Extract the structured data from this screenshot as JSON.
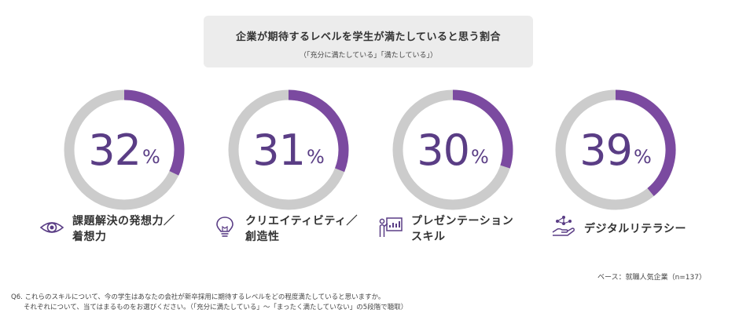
{
  "title": "企業が期待するレベルを学生が満たしていると思う割合",
  "subtitle": "（「充分に満たしている」「満たしている」）",
  "colors": {
    "accent": "#7b4aa0",
    "track": "#cccccc",
    "value_text": "#5a3d85"
  },
  "chart_data": {
    "type": "gauge",
    "title": "企業が期待するレベルを学生が満たしていると思う割合",
    "subtitle": "（「充分に満たしている」「満たしている」）",
    "unit": "%",
    "max": 100,
    "items": [
      {
        "value": 32,
        "value_label": "32",
        "label_lines": [
          "課題解決の発想力／",
          "着想力"
        ],
        "icon": "eye-icon"
      },
      {
        "value": 31,
        "value_label": "31",
        "label_lines": [
          "クリエイティビティ／",
          "創造性"
        ],
        "icon": "lightbulb-icon"
      },
      {
        "value": 30,
        "value_label": "30",
        "label_lines": [
          "プレゼンテーション",
          "スキル"
        ],
        "icon": "presentation-icon"
      },
      {
        "value": 39,
        "value_label": "39",
        "label_lines": [
          "デジタルリテラシー"
        ],
        "icon": "digital-hand-icon"
      }
    ]
  },
  "base_note": "ベース：就職人気企業（n=137）",
  "footnote_lines": [
    "Q6. これらのスキルについて、今の学生はあなたの会社が新卒採用に期待するレベルをどの程度満たしていると思いますか。",
    "それぞれについて、当てはまるものをお選びください。（「充分に満たしている」〜「まったく満たしていない」の5段階で聴取）"
  ]
}
